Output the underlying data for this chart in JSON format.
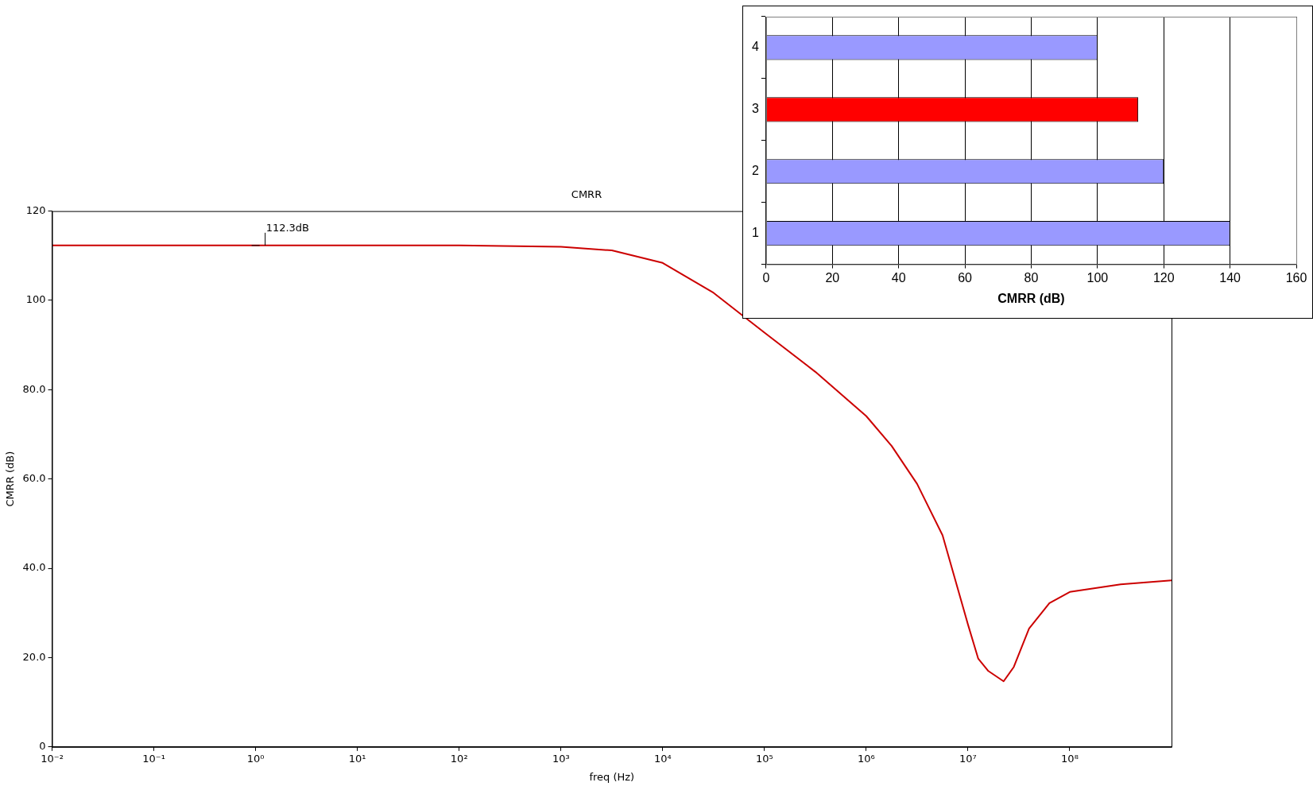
{
  "chart_data": [
    {
      "type": "line",
      "title": "CMRR",
      "xlabel": "freq (Hz)",
      "ylabel": "CMRR (dB)",
      "log": "x",
      "grid": false,
      "legend": false,
      "marker": "none",
      "line_style": "solid",
      "xlim": [
        0.01,
        1000000000
      ],
      "xticks": [
        {
          "value": 0.01,
          "label": "10⁻²"
        },
        {
          "value": 0.1,
          "label": "10⁻¹"
        },
        {
          "value": 1,
          "label": "10⁰"
        },
        {
          "value": 10,
          "label": "10¹"
        },
        {
          "value": 100,
          "label": "10²"
        },
        {
          "value": 1000,
          "label": "10³"
        },
        {
          "value": 10000,
          "label": "10⁴"
        },
        {
          "value": 100000,
          "label": "10⁵"
        },
        {
          "value": 1000000,
          "label": "10⁶"
        },
        {
          "value": 10000000,
          "label": "10⁷"
        },
        {
          "value": 100000000,
          "label": "10⁸"
        }
      ],
      "ylim": [
        0,
        120
      ],
      "yticks": [
        0,
        {
          "value": 20,
          "label": "20.0"
        },
        {
          "value": 40,
          "label": "40.0"
        },
        {
          "value": 60,
          "label": "60.0"
        },
        {
          "value": 80,
          "label": "80.0"
        },
        100,
        120
      ],
      "series": [
        {
          "color": "#cc0000",
          "x": [
            0.01,
            1,
            100,
            1000,
            3162,
            10000,
            31623,
            100000,
            316228,
            1000000,
            1778279,
            3162278,
            5623413,
            10000000,
            12589254,
            15848932,
            22387211,
            28183829,
            39810717,
            63095734,
            100000000,
            316227766,
            1000000000
          ],
          "values": [
            112.3,
            112.3,
            112.3,
            112.0,
            111.2,
            108.4,
            101.7,
            92.8,
            84.0,
            74.1,
            67.4,
            58.9,
            47.4,
            27.4,
            19.8,
            17.0,
            14.7,
            17.9,
            26.5,
            32.2,
            34.7,
            36.4,
            37.3
          ]
        }
      ],
      "annotations": [
        {
          "text": "112.3dB",
          "x": 1,
          "y": 112.3
        }
      ]
    },
    {
      "type": "bar",
      "orientation": "horizontal",
      "xlabel": "CMRR (dB)",
      "grid": "x",
      "legend": false,
      "categories": [
        "4",
        "3",
        "2",
        "1"
      ],
      "values": [
        100,
        112.3,
        120,
        140
      ],
      "colors": [
        "#9999ff",
        "#ff0000",
        "#9999ff",
        "#9999ff"
      ],
      "xlim": [
        0,
        160
      ],
      "xticks": [
        0,
        20,
        40,
        60,
        80,
        100,
        120,
        140,
        160
      ]
    }
  ]
}
